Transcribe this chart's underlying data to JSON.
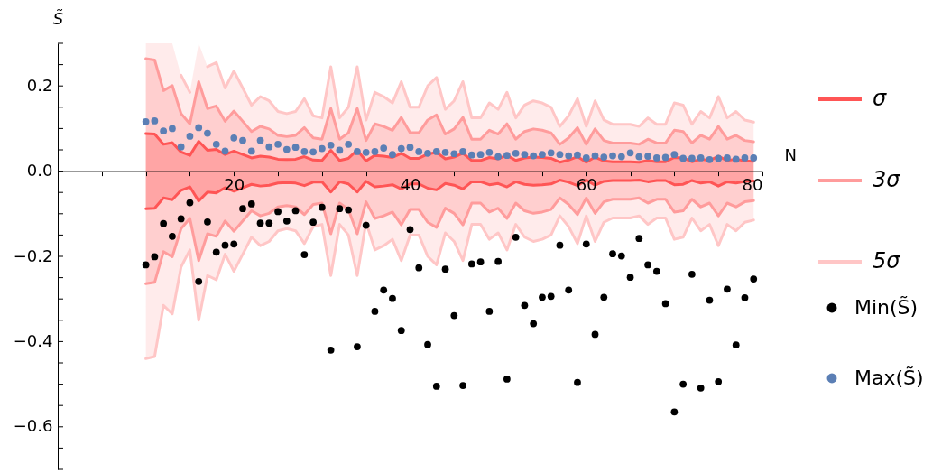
{
  "chart_data": {
    "type": "scatter",
    "xlabel": "N",
    "ylabel": "S̃",
    "xlim": [
      0,
      80
    ],
    "ylim": [
      -0.7,
      0.3
    ],
    "xticks": [
      {
        "value": 5,
        "label": null
      },
      {
        "value": 10,
        "label": null
      },
      {
        "value": 15,
        "label": null
      },
      20,
      {
        "value": 25,
        "label": null
      },
      {
        "value": 30,
        "label": null
      },
      {
        "value": 35,
        "label": null
      },
      40,
      {
        "value": 45,
        "label": null
      },
      {
        "value": 50,
        "label": null
      },
      {
        "value": 55,
        "label": null
      },
      60,
      {
        "value": 65,
        "label": null
      },
      {
        "value": 70,
        "label": null
      },
      {
        "value": 75,
        "label": null
      },
      80
    ],
    "yticks": [
      {
        "value": -0.7,
        "label": null
      },
      {
        "value": -0.65,
        "label": null
      },
      {
        "value": -0.6,
        "label": "−0.6"
      },
      {
        "value": -0.55,
        "label": null
      },
      {
        "value": -0.5,
        "label": null
      },
      {
        "value": -0.45,
        "label": null
      },
      {
        "value": -0.4,
        "label": "−0.4"
      },
      {
        "value": -0.35,
        "label": null
      },
      {
        "value": -0.3,
        "label": null
      },
      {
        "value": -0.25,
        "label": null
      },
      {
        "value": -0.2,
        "label": "−0.2"
      },
      {
        "value": -0.15,
        "label": null
      },
      {
        "value": -0.1,
        "label": null
      },
      {
        "value": -0.05,
        "label": null
      },
      {
        "value": 0,
        "label": "0.0"
      },
      {
        "value": 0.05,
        "label": null
      },
      {
        "value": 0.1,
        "label": null
      },
      {
        "value": 0.15,
        "label": null
      },
      0.2,
      {
        "value": 0.25,
        "label": null
      },
      {
        "value": 0.3,
        "label": null
      }
    ],
    "grid": false,
    "legend": "right",
    "marker": "circle",
    "x": [
      10,
      11,
      12,
      13,
      14,
      15,
      16,
      17,
      18,
      19,
      20,
      21,
      22,
      23,
      24,
      25,
      26,
      27,
      28,
      29,
      30,
      31,
      32,
      33,
      34,
      35,
      36,
      37,
      38,
      39,
      40,
      41,
      42,
      43,
      44,
      45,
      46,
      47,
      48,
      49,
      50,
      51,
      52,
      53,
      54,
      55,
      56,
      57,
      58,
      59,
      60,
      61,
      62,
      63,
      64,
      65,
      66,
      67,
      68,
      69,
      70,
      71,
      72,
      73,
      74,
      75,
      76,
      77,
      78,
      79
    ],
    "series": [
      {
        "name": "σ",
        "type": "line",
        "marker": "none",
        "color": "#ff5555",
        "values": [
          0.088,
          0.087,
          0.063,
          0.067,
          0.045,
          0.037,
          0.07,
          0.049,
          0.051,
          0.039,
          0.047,
          0.039,
          0.031,
          0.035,
          0.033,
          0.028,
          0.027,
          0.028,
          0.034,
          0.026,
          0.025,
          0.049,
          0.025,
          0.03,
          0.049,
          0.024,
          0.037,
          0.035,
          0.032,
          0.042,
          0.03,
          0.03,
          0.04,
          0.044,
          0.029,
          0.033,
          0.042,
          0.025,
          0.025,
          0.032,
          0.029,
          0.037,
          0.025,
          0.031,
          0.033,
          0.032,
          0.03,
          0.021,
          0.026,
          0.034,
          0.021,
          0.033,
          0.024,
          0.022,
          0.022,
          0.022,
          0.021,
          0.025,
          0.022,
          0.022,
          0.032,
          0.031,
          0.022,
          0.028,
          0.025,
          0.035,
          0.025,
          0.028,
          0.024,
          0.023
        ],
        "upper": [
          0.088,
          0.087,
          0.063,
          0.067,
          0.045,
          0.037,
          0.07,
          0.049,
          0.051,
          0.039,
          0.047,
          0.039,
          0.031,
          0.035,
          0.033,
          0.028,
          0.027,
          0.028,
          0.034,
          0.026,
          0.025,
          0.049,
          0.025,
          0.03,
          0.049,
          0.024,
          0.037,
          0.035,
          0.032,
          0.042,
          0.03,
          0.03,
          0.04,
          0.044,
          0.029,
          0.033,
          0.042,
          0.025,
          0.025,
          0.032,
          0.029,
          0.037,
          0.025,
          0.031,
          0.033,
          0.032,
          0.03,
          0.021,
          0.026,
          0.034,
          0.021,
          0.033,
          0.024,
          0.022,
          0.022,
          0.022,
          0.021,
          0.025,
          0.022,
          0.022,
          0.032,
          0.031,
          0.022,
          0.028,
          0.025,
          0.035,
          0.025,
          0.028,
          0.024,
          0.023
        ],
        "lower": [
          -0.088,
          -0.087,
          -0.063,
          -0.067,
          -0.045,
          -0.037,
          -0.07,
          -0.049,
          -0.051,
          -0.039,
          -0.047,
          -0.039,
          -0.031,
          -0.035,
          -0.033,
          -0.028,
          -0.027,
          -0.028,
          -0.034,
          -0.026,
          -0.025,
          -0.049,
          -0.025,
          -0.03,
          -0.049,
          -0.024,
          -0.037,
          -0.035,
          -0.032,
          -0.042,
          -0.03,
          -0.03,
          -0.04,
          -0.044,
          -0.029,
          -0.033,
          -0.042,
          -0.025,
          -0.025,
          -0.032,
          -0.029,
          -0.037,
          -0.025,
          -0.031,
          -0.033,
          -0.032,
          -0.03,
          -0.021,
          -0.026,
          -0.034,
          -0.021,
          -0.033,
          -0.024,
          -0.022,
          -0.022,
          -0.022,
          -0.021,
          -0.025,
          -0.022,
          -0.022,
          -0.032,
          -0.031,
          -0.022,
          -0.028,
          -0.025,
          -0.035,
          -0.025,
          -0.028,
          -0.024,
          -0.023
        ]
      },
      {
        "type": "line",
        "marker": "none",
        "color": "#ff5555",
        "values": [
          -0.088,
          -0.087,
          -0.063,
          -0.067,
          -0.045,
          -0.037,
          -0.07,
          -0.049,
          -0.051,
          -0.039,
          -0.047,
          -0.039,
          -0.031,
          -0.035,
          -0.033,
          -0.028,
          -0.027,
          -0.028,
          -0.034,
          -0.026,
          -0.025,
          -0.049,
          -0.025,
          -0.03,
          -0.049,
          -0.024,
          -0.037,
          -0.035,
          -0.032,
          -0.042,
          -0.03,
          -0.03,
          -0.04,
          -0.044,
          -0.029,
          -0.033,
          -0.042,
          -0.025,
          -0.025,
          -0.032,
          -0.029,
          -0.037,
          -0.025,
          -0.031,
          -0.033,
          -0.032,
          -0.03,
          -0.021,
          -0.026,
          -0.034,
          -0.021,
          -0.033,
          -0.024,
          -0.022,
          -0.022,
          -0.022,
          -0.021,
          -0.025,
          -0.022,
          -0.022,
          -0.032,
          -0.031,
          -0.022,
          -0.028,
          -0.025,
          -0.035,
          -0.025,
          -0.028,
          -0.024,
          -0.023
        ]
      },
      {
        "name": "3σ",
        "type": "line",
        "marker": "none",
        "color": "#ff9c9c",
        "values": [
          0.264,
          0.261,
          0.189,
          0.201,
          0.135,
          0.111,
          0.21,
          0.147,
          0.153,
          0.117,
          0.141,
          0.117,
          0.093,
          0.105,
          0.099,
          0.084,
          0.081,
          0.084,
          0.102,
          0.078,
          0.075,
          0.147,
          0.075,
          0.09,
          0.147,
          0.072,
          0.111,
          0.105,
          0.096,
          0.126,
          0.09,
          0.09,
          0.12,
          0.132,
          0.087,
          0.099,
          0.126,
          0.075,
          0.075,
          0.096,
          0.087,
          0.111,
          0.075,
          0.093,
          0.099,
          0.096,
          0.09,
          0.063,
          0.078,
          0.102,
          0.063,
          0.099,
          0.072,
          0.066,
          0.066,
          0.066,
          0.063,
          0.075,
          0.066,
          0.066,
          0.096,
          0.093,
          0.066,
          0.084,
          0.075,
          0.105,
          0.075,
          0.084,
          0.072,
          0.069
        ],
        "upper": [
          0.264,
          0.261,
          0.189,
          0.201,
          0.135,
          0.111,
          0.21,
          0.147,
          0.153,
          0.117,
          0.141,
          0.117,
          0.093,
          0.105,
          0.099,
          0.084,
          0.081,
          0.084,
          0.102,
          0.078,
          0.075,
          0.147,
          0.075,
          0.09,
          0.147,
          0.072,
          0.111,
          0.105,
          0.096,
          0.126,
          0.09,
          0.09,
          0.12,
          0.132,
          0.087,
          0.099,
          0.126,
          0.075,
          0.075,
          0.096,
          0.087,
          0.111,
          0.075,
          0.093,
          0.099,
          0.096,
          0.09,
          0.063,
          0.078,
          0.102,
          0.063,
          0.099,
          0.072,
          0.066,
          0.066,
          0.066,
          0.063,
          0.075,
          0.066,
          0.066,
          0.096,
          0.093,
          0.066,
          0.084,
          0.075,
          0.105,
          0.075,
          0.084,
          0.072,
          0.069
        ],
        "lower": [
          -0.264,
          -0.261,
          -0.189,
          -0.201,
          -0.135,
          -0.111,
          -0.21,
          -0.147,
          -0.153,
          -0.117,
          -0.141,
          -0.117,
          -0.093,
          -0.105,
          -0.099,
          -0.084,
          -0.081,
          -0.084,
          -0.102,
          -0.078,
          -0.075,
          -0.147,
          -0.075,
          -0.09,
          -0.147,
          -0.072,
          -0.111,
          -0.105,
          -0.096,
          -0.126,
          -0.09,
          -0.09,
          -0.12,
          -0.132,
          -0.087,
          -0.099,
          -0.126,
          -0.075,
          -0.075,
          -0.096,
          -0.087,
          -0.111,
          -0.075,
          -0.093,
          -0.099,
          -0.096,
          -0.09,
          -0.063,
          -0.078,
          -0.102,
          -0.063,
          -0.099,
          -0.072,
          -0.066,
          -0.066,
          -0.066,
          -0.063,
          -0.075,
          -0.066,
          -0.066,
          -0.096,
          -0.093,
          -0.066,
          -0.084,
          -0.075,
          -0.105,
          -0.075,
          -0.084,
          -0.072,
          -0.069
        ]
      },
      {
        "type": "line",
        "marker": "none",
        "color": "#ff9c9c",
        "values": [
          -0.264,
          -0.261,
          -0.189,
          -0.201,
          -0.135,
          -0.111,
          -0.21,
          -0.147,
          -0.153,
          -0.117,
          -0.141,
          -0.117,
          -0.093,
          -0.105,
          -0.099,
          -0.084,
          -0.081,
          -0.084,
          -0.102,
          -0.078,
          -0.075,
          -0.147,
          -0.075,
          -0.09,
          -0.147,
          -0.072,
          -0.111,
          -0.105,
          -0.096,
          -0.126,
          -0.09,
          -0.09,
          -0.12,
          -0.132,
          -0.087,
          -0.099,
          -0.126,
          -0.075,
          -0.075,
          -0.096,
          -0.087,
          -0.111,
          -0.075,
          -0.093,
          -0.099,
          -0.096,
          -0.09,
          -0.063,
          -0.078,
          -0.102,
          -0.063,
          -0.099,
          -0.072,
          -0.066,
          -0.066,
          -0.066,
          -0.063,
          -0.075,
          -0.066,
          -0.066,
          -0.096,
          -0.093,
          -0.066,
          -0.084,
          -0.075,
          -0.105,
          -0.075,
          -0.084,
          -0.072,
          -0.069
        ]
      },
      {
        "name": "5σ",
        "type": "line",
        "marker": "none",
        "color": "#ffc6c6",
        "values": [
          null,
          null,
          null,
          null,
          0.225,
          0.185,
          null,
          0.245,
          0.255,
          0.195,
          0.235,
          0.195,
          0.155,
          0.175,
          0.165,
          0.14,
          0.135,
          0.14,
          0.17,
          0.13,
          0.125,
          0.245,
          0.125,
          0.15,
          0.245,
          0.12,
          0.185,
          0.175,
          0.16,
          0.21,
          0.15,
          0.15,
          0.2,
          0.22,
          0.145,
          0.165,
          0.21,
          0.125,
          0.125,
          0.16,
          0.145,
          0.185,
          0.125,
          0.155,
          0.165,
          0.16,
          0.15,
          0.105,
          0.13,
          0.17,
          0.105,
          0.165,
          0.12,
          0.11,
          0.11,
          0.11,
          0.105,
          0.125,
          0.11,
          0.11,
          0.16,
          0.155,
          0.11,
          0.14,
          0.125,
          0.175,
          0.125,
          0.14,
          0.12,
          0.115
        ],
        "upper": [
          0.3,
          0.3,
          0.3,
          0.3,
          0.225,
          0.185,
          0.3,
          0.245,
          0.255,
          0.195,
          0.235,
          0.195,
          0.155,
          0.175,
          0.165,
          0.14,
          0.135,
          0.14,
          0.17,
          0.13,
          0.125,
          0.245,
          0.125,
          0.15,
          0.245,
          0.12,
          0.185,
          0.175,
          0.16,
          0.21,
          0.15,
          0.15,
          0.2,
          0.22,
          0.145,
          0.165,
          0.21,
          0.125,
          0.125,
          0.16,
          0.145,
          0.185,
          0.125,
          0.155,
          0.165,
          0.16,
          0.15,
          0.105,
          0.13,
          0.17,
          0.105,
          0.165,
          0.12,
          0.11,
          0.11,
          0.11,
          0.105,
          0.125,
          0.11,
          0.11,
          0.16,
          0.155,
          0.11,
          0.14,
          0.125,
          0.175,
          0.125,
          0.14,
          0.12,
          0.115
        ],
        "lower": [
          -0.44,
          -0.435,
          -0.315,
          -0.335,
          -0.225,
          -0.185,
          -0.35,
          -0.245,
          -0.255,
          -0.195,
          -0.235,
          -0.195,
          -0.155,
          -0.175,
          -0.165,
          -0.14,
          -0.135,
          -0.14,
          -0.17,
          -0.13,
          -0.125,
          -0.245,
          -0.125,
          -0.15,
          -0.245,
          -0.12,
          -0.185,
          -0.175,
          -0.16,
          -0.21,
          -0.15,
          -0.15,
          -0.2,
          -0.22,
          -0.145,
          -0.165,
          -0.21,
          -0.125,
          -0.125,
          -0.16,
          -0.145,
          -0.185,
          -0.125,
          -0.155,
          -0.165,
          -0.16,
          -0.15,
          -0.105,
          -0.13,
          -0.17,
          -0.105,
          -0.165,
          -0.12,
          -0.11,
          -0.11,
          -0.11,
          -0.105,
          -0.125,
          -0.11,
          -0.11,
          -0.16,
          -0.155,
          -0.11,
          -0.14,
          -0.125,
          -0.175,
          -0.125,
          -0.14,
          -0.12,
          -0.115
        ]
      },
      {
        "type": "line",
        "marker": "none",
        "color": "#ffc6c6",
        "values": [
          -0.44,
          -0.435,
          -0.315,
          -0.335,
          -0.225,
          -0.185,
          -0.35,
          -0.245,
          -0.255,
          -0.195,
          -0.235,
          -0.195,
          -0.155,
          -0.175,
          -0.165,
          -0.14,
          -0.135,
          -0.14,
          -0.17,
          -0.13,
          -0.125,
          -0.245,
          -0.125,
          -0.15,
          -0.245,
          -0.12,
          -0.185,
          -0.175,
          -0.16,
          -0.21,
          -0.15,
          -0.15,
          -0.2,
          -0.22,
          -0.145,
          -0.165,
          -0.21,
          -0.125,
          -0.125,
          -0.16,
          -0.145,
          -0.185,
          -0.125,
          -0.155,
          -0.165,
          -0.16,
          -0.15,
          -0.105,
          -0.13,
          -0.17,
          -0.105,
          -0.165,
          -0.12,
          -0.11,
          -0.11,
          -0.11,
          -0.105,
          -0.125,
          -0.11,
          -0.11,
          -0.16,
          -0.155,
          -0.11,
          -0.14,
          -0.125,
          -0.175,
          -0.125,
          -0.14,
          -0.12,
          -0.115
        ]
      },
      {
        "name": "Min(S̃)",
        "color": "#000000",
        "values": [
          -0.22,
          -0.201,
          -0.123,
          -0.153,
          -0.112,
          -0.074,
          -0.259,
          -0.119,
          -0.19,
          -0.174,
          -0.171,
          -0.088,
          -0.077,
          -0.122,
          -0.122,
          -0.095,
          -0.117,
          -0.093,
          -0.196,
          -0.12,
          -0.085,
          -0.42,
          -0.088,
          -0.091,
          -0.412,
          -0.127,
          -0.329,
          -0.279,
          -0.299,
          -0.374,
          -0.137,
          -0.227,
          -0.407,
          -0.505,
          -0.23,
          -0.339,
          -0.503,
          -0.218,
          -0.213,
          -0.329,
          -0.212,
          -0.488,
          -0.155,
          -0.315,
          -0.358,
          -0.296,
          -0.294,
          -0.174,
          -0.279,
          -0.496,
          -0.171,
          -0.383,
          -0.296,
          -0.194,
          -0.199,
          -0.249,
          -0.158,
          -0.22,
          -0.235,
          -0.311,
          -0.565,
          -0.5,
          -0.242,
          -0.509,
          -0.303,
          -0.494,
          -0.277,
          -0.408,
          -0.297,
          -0.253
        ]
      },
      {
        "name": "Max(S̃)",
        "color": "#5b7fb5",
        "values": [
          0.116,
          0.118,
          0.094,
          0.1,
          0.057,
          0.082,
          0.102,
          0.089,
          0.063,
          0.047,
          0.078,
          0.072,
          0.047,
          0.072,
          0.057,
          0.063,
          0.051,
          0.056,
          0.046,
          0.045,
          0.053,
          0.061,
          0.049,
          0.063,
          0.046,
          0.044,
          0.046,
          0.054,
          0.039,
          0.053,
          0.056,
          0.046,
          0.042,
          0.046,
          0.044,
          0.041,
          0.046,
          0.038,
          0.039,
          0.044,
          0.034,
          0.037,
          0.042,
          0.039,
          0.036,
          0.039,
          0.043,
          0.039,
          0.036,
          0.038,
          0.031,
          0.036,
          0.033,
          0.036,
          0.034,
          0.043,
          0.034,
          0.035,
          0.031,
          0.032,
          0.039,
          0.03,
          0.03,
          0.031,
          0.027,
          0.03,
          0.031,
          0.028,
          0.031,
          0.031
        ]
      }
    ]
  }
}
